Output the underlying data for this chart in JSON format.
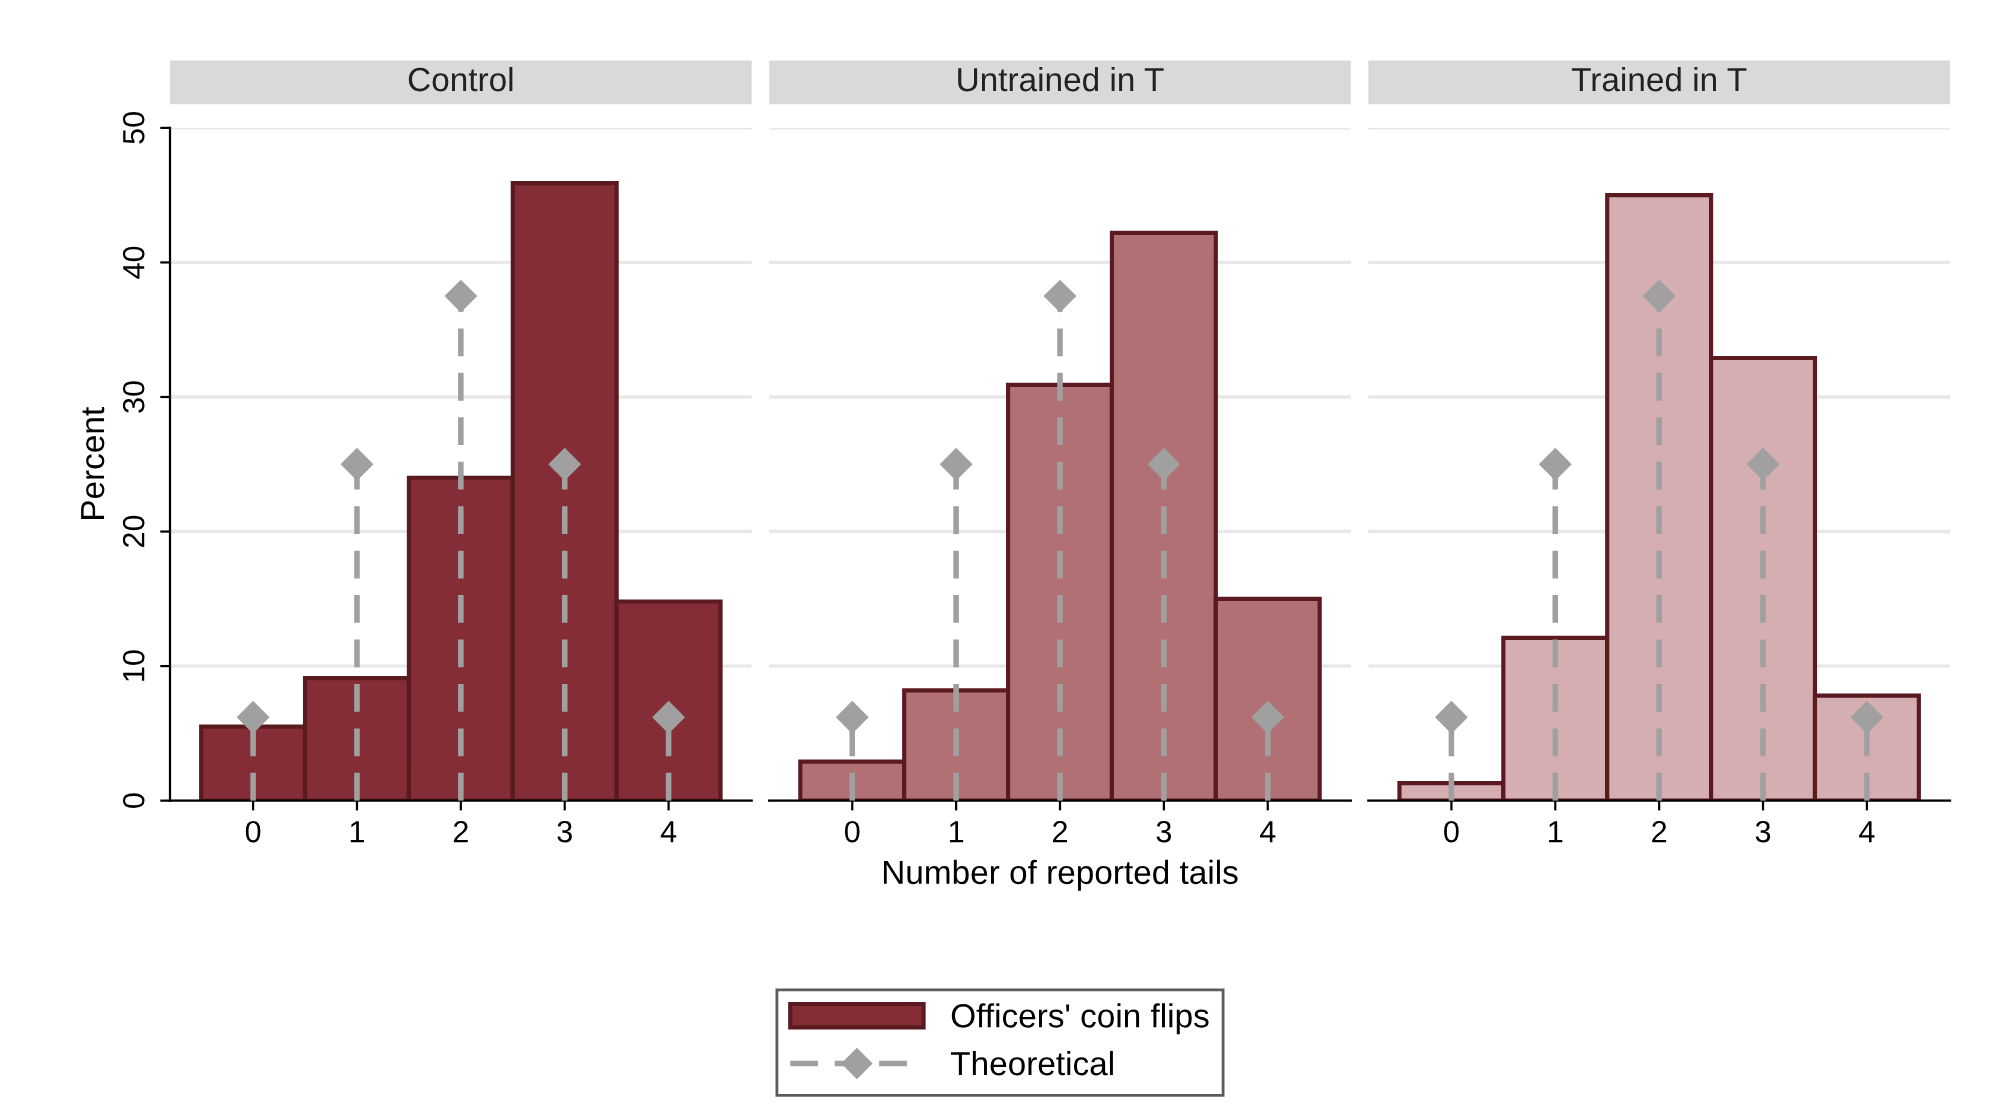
{
  "chart_data": [
    {
      "type": "histogram",
      "title": "Control",
      "ylabel": "Percent",
      "bins": [
        -0.5,
        0.5,
        1.5,
        2.5,
        3.5,
        4.5
      ],
      "xlim": [
        -0.8,
        4.8
      ],
      "xticks": [
        0,
        1,
        2,
        3,
        4
      ],
      "ylim": [
        0,
        50
      ],
      "yticks": [
        0,
        10,
        20,
        30,
        40,
        50
      ],
      "grid": "y",
      "legend": "bottom",
      "series": [
        {
          "name": "Officers' coin flips",
          "color": "#842d36",
          "values": [
            5.5,
            9.1,
            24,
            45.9,
            14.8
          ]
        },
        {
          "name": "Theoretical",
          "type": "lollipop",
          "x": [
            0,
            1,
            2,
            3,
            4
          ],
          "color": "#a0a0a0",
          "values": [
            6.2,
            25,
            37.5,
            25,
            6.2
          ]
        }
      ]
    },
    {
      "type": "histogram",
      "title": "Untrained in T",
      "xlabel": "Number of reported tails",
      "bins": [
        -0.5,
        0.5,
        1.5,
        2.5,
        3.5,
        4.5
      ],
      "xlim": [
        -0.8,
        4.8
      ],
      "xticks": [
        0,
        1,
        2,
        3,
        4
      ],
      "ylim": [
        0,
        50
      ],
      "yticks": [
        0,
        10,
        20,
        30,
        40,
        50
      ],
      "grid": "y",
      "tick_labels": "x",
      "series": [
        {
          "color": "#b07074",
          "values": [
            2.9,
            8.2,
            30.9,
            42.2,
            15
          ]
        },
        {
          "type": "lollipop",
          "x": [
            0,
            1,
            2,
            3,
            4
          ],
          "color": "#a0a0a0",
          "values": [
            6.2,
            25,
            37.5,
            25,
            6.2
          ]
        }
      ]
    },
    {
      "type": "histogram",
      "title": "Trained in T",
      "bins": [
        -0.5,
        0.5,
        1.5,
        2.5,
        3.5,
        4.5
      ],
      "xlim": [
        -0.8,
        4.8
      ],
      "xticks": [
        0,
        1,
        2,
        3,
        4
      ],
      "ylim": [
        0,
        50
      ],
      "yticks": [
        0,
        10,
        20,
        30,
        40,
        50
      ],
      "grid": "y",
      "tick_labels": "x",
      "series": [
        {
          "color": "#d4aeb1",
          "values": [
            1.3,
            12.1,
            45,
            32.9,
            7.8
          ]
        },
        {
          "type": "lollipop",
          "x": [
            0,
            1,
            2,
            3,
            4
          ],
          "color": "#a0a0a0",
          "values": [
            6.2,
            25,
            37.5,
            25,
            6.2
          ]
        }
      ]
    }
  ]
}
